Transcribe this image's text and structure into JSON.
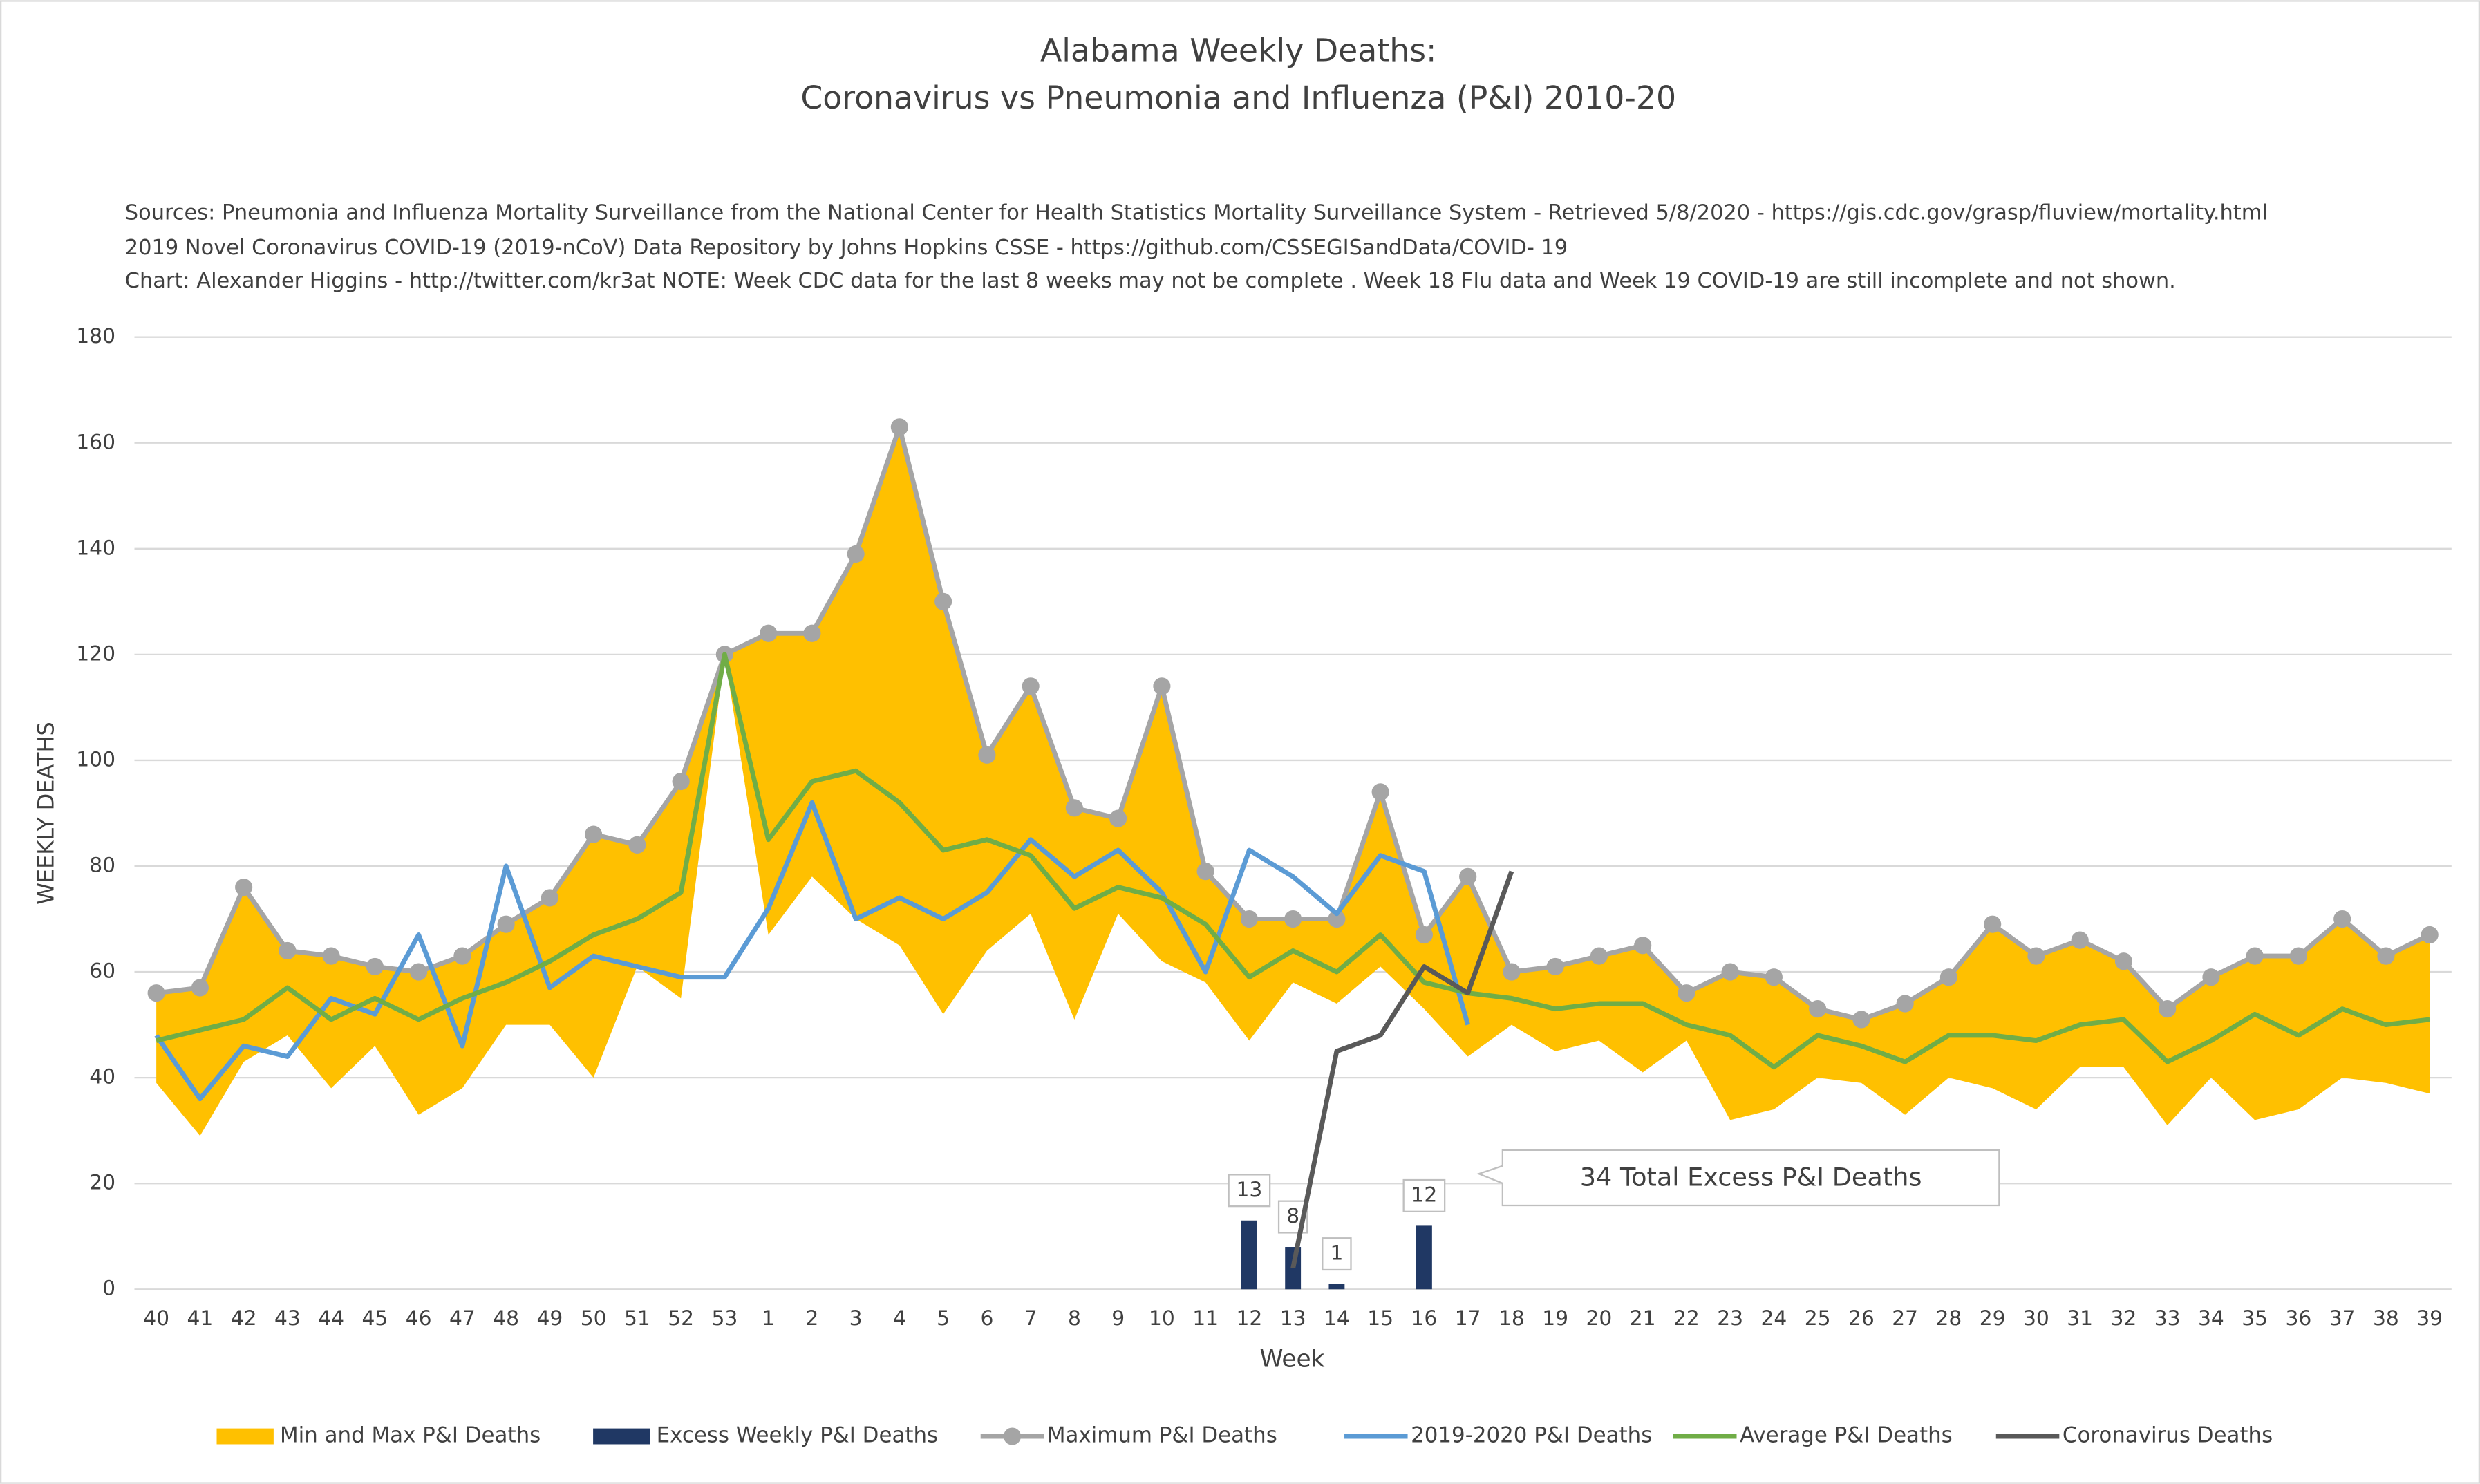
{
  "chart_data": {
    "type": "combo",
    "title": [
      "Alabama Weekly Deaths:",
      "Coronavirus vs Pneumonia and Influenza (P&I) 2010-20"
    ],
    "subtitle": [
      "Sources: Pneumonia and Influenza Mortality Surveillance from the National Center for Health Statistics Mortality Surveillance System - Retrieved 5/8/2020 - https://gis.cdc.gov/grasp/fluview/mortality.html",
      "2019 Novel Coronavirus COVID-19 (2019-nCoV) Data Repository by Johns Hopkins CSSE - https://github.com/CSSEGISandData/COVID- 19",
      "Chart: Alexander Higgins - http://twitter.com/kr3at   NOTE: Week CDC data for the last 8 weeks may not be complete . Week 18 Flu data and Week 19 COVID-19 are still incomplete and not shown."
    ],
    "x_label": "Week",
    "y_label": "WEEKLY DEATHS",
    "annotation": "34 Total Excess P&I Deaths",
    "categories": [
      "40",
      "41",
      "42",
      "43",
      "44",
      "45",
      "46",
      "47",
      "48",
      "49",
      "50",
      "51",
      "52",
      "53",
      "1",
      "2",
      "3",
      "4",
      "5",
      "6",
      "7",
      "8",
      "9",
      "10",
      "11",
      "12",
      "13",
      "14",
      "15",
      "16",
      "17",
      "18",
      "19",
      "20",
      "21",
      "22",
      "23",
      "24",
      "25",
      "26",
      "27",
      "28",
      "29",
      "30",
      "31",
      "32",
      "33",
      "34",
      "35",
      "36",
      "37",
      "38",
      "39"
    ],
    "ylim": [
      0,
      180
    ],
    "yticks": [
      0,
      20,
      40,
      60,
      80,
      100,
      120,
      140,
      160,
      180
    ],
    "grid": true,
    "legend": "bottom",
    "band": {
      "name": "Min and Max P&I Deaths",
      "color": "#FFC000",
      "low": [
        39,
        29,
        43,
        48,
        38,
        46,
        33,
        38,
        50,
        50,
        40,
        61,
        55,
        120,
        67,
        78,
        70,
        65,
        52,
        64,
        71,
        51,
        71,
        62,
        58,
        47,
        58,
        54,
        61,
        53,
        44,
        50,
        45,
        47,
        41,
        47,
        32,
        34,
        40,
        39,
        33,
        40,
        38,
        34,
        42,
        42,
        31,
        40,
        32,
        34,
        40,
        39,
        37
      ],
      "high": [
        56,
        57,
        76,
        64,
        63,
        61,
        60,
        63,
        69,
        74,
        86,
        84,
        96,
        120,
        124,
        124,
        139,
        163,
        130,
        101,
        114,
        91,
        89,
        114,
        79,
        70,
        70,
        70,
        94,
        67,
        78,
        60,
        61,
        63,
        65,
        56,
        60,
        59,
        53,
        51,
        54,
        59,
        69,
        63,
        66,
        62,
        53,
        59,
        63,
        63,
        70,
        63,
        67
      ]
    },
    "series": [
      {
        "name": "Excess Weekly P&I Deaths",
        "kind": "bar",
        "color": "#203864",
        "values": [
          null,
          null,
          null,
          null,
          null,
          null,
          null,
          null,
          null,
          null,
          null,
          null,
          null,
          null,
          null,
          null,
          null,
          null,
          null,
          null,
          null,
          null,
          null,
          null,
          null,
          13,
          8,
          1,
          null,
          12,
          null,
          null,
          null,
          null,
          null,
          null,
          null,
          null,
          null,
          null,
          null,
          null,
          null,
          null,
          null,
          null,
          null,
          null,
          null,
          null,
          null,
          null,
          null
        ]
      },
      {
        "name": "Maximum P&I Deaths",
        "kind": "line",
        "markers": true,
        "color": "#A5A5A5",
        "values": [
          56,
          57,
          76,
          64,
          63,
          61,
          60,
          63,
          69,
          74,
          86,
          84,
          96,
          120,
          124,
          124,
          139,
          163,
          130,
          101,
          114,
          91,
          89,
          114,
          79,
          70,
          70,
          70,
          94,
          67,
          78,
          60,
          61,
          63,
          65,
          56,
          60,
          59,
          53,
          51,
          54,
          59,
          69,
          63,
          66,
          62,
          53,
          59,
          63,
          63,
          70,
          63,
          67
        ]
      },
      {
        "name": "2019-2020 P&I Deaths",
        "kind": "line",
        "color": "#5B9BD5",
        "values": [
          48,
          36,
          46,
          44,
          55,
          52,
          67,
          46,
          80,
          57,
          63,
          61,
          59,
          59,
          72,
          92,
          70,
          74,
          70,
          75,
          85,
          78,
          83,
          75,
          60,
          83,
          78,
          71,
          82,
          79,
          50,
          null,
          null,
          null,
          null,
          null,
          null,
          null,
          null,
          null,
          null,
          null,
          null,
          null,
          null,
          null,
          null,
          null,
          null,
          null,
          null,
          null,
          null
        ]
      },
      {
        "name": "Average P&I Deaths",
        "kind": "line",
        "color": "#70AD47",
        "values": [
          47,
          49,
          51,
          57,
          51,
          55,
          51,
          55,
          58,
          62,
          67,
          70,
          75,
          120,
          85,
          96,
          98,
          92,
          83,
          85,
          82,
          72,
          76,
          74,
          69,
          59,
          64,
          60,
          67,
          58,
          56,
          55,
          53,
          54,
          54,
          50,
          48,
          42,
          48,
          46,
          43,
          48,
          48,
          47,
          50,
          51,
          43,
          47,
          52,
          48,
          53,
          50,
          51
        ]
      },
      {
        "name": "Coronavirus Deaths",
        "kind": "line",
        "color": "#595959",
        "values": [
          null,
          null,
          null,
          null,
          null,
          null,
          null,
          null,
          null,
          null,
          null,
          null,
          null,
          null,
          null,
          null,
          null,
          null,
          null,
          null,
          null,
          null,
          null,
          null,
          null,
          null,
          4,
          45,
          48,
          61,
          56,
          79,
          null,
          null,
          null,
          null,
          null,
          null,
          null,
          null,
          null,
          null,
          null,
          null,
          null,
          null,
          null,
          null,
          null,
          null,
          null,
          null,
          null
        ]
      }
    ]
  }
}
